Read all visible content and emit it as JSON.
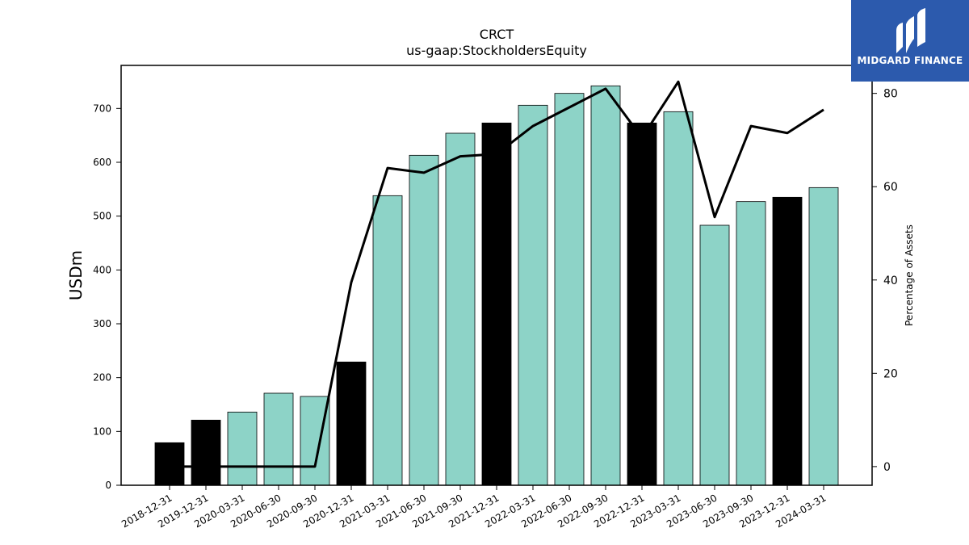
{
  "chart_data": {
    "type": "bar",
    "title": "CRCT",
    "subtitle": "us-gaap:StockholdersEquity",
    "ylabel": "USDm",
    "y2label": "Percentage of Assets",
    "ylim": [
      0,
      780
    ],
    "y2lim": [
      -4,
      86
    ],
    "yticks": [
      0,
      100,
      200,
      300,
      400,
      500,
      600,
      700
    ],
    "y2ticks": [
      0,
      20,
      40,
      60,
      80
    ],
    "categories": [
      "2018-12-31",
      "2019-12-31",
      "2020-03-31",
      "2020-06-30",
      "2020-09-30",
      "2020-12-31",
      "2021-03-31",
      "2021-06-30",
      "2021-09-30",
      "2021-12-31",
      "2022-03-31",
      "2022-06-30",
      "2022-09-30",
      "2022-12-31",
      "2023-03-31",
      "2023-06-30",
      "2023-09-30",
      "2023-12-31",
      "2024-03-31"
    ],
    "series": [
      {
        "type": "bar",
        "axis": "left",
        "values": [
          79,
          121,
          136,
          171,
          165,
          229,
          538,
          613,
          654,
          673,
          706,
          728,
          742,
          673,
          694,
          483,
          527,
          535,
          553
        ],
        "colors": [
          "#000000",
          "#000000",
          "#8dd3c7",
          "#8dd3c7",
          "#8dd3c7",
          "#000000",
          "#8dd3c7",
          "#8dd3c7",
          "#8dd3c7",
          "#000000",
          "#8dd3c7",
          "#8dd3c7",
          "#8dd3c7",
          "#000000",
          "#8dd3c7",
          "#8dd3c7",
          "#8dd3c7",
          "#000000",
          "#8dd3c7"
        ]
      },
      {
        "type": "line",
        "axis": "right",
        "values": [
          0,
          0,
          0,
          0,
          0,
          39.5,
          64,
          63,
          66.5,
          67,
          73,
          77,
          81,
          70.5,
          82.5,
          53.5,
          73,
          71.5,
          76.5
        ],
        "color": "#000000"
      }
    ],
    "grid": false,
    "legend": "none"
  },
  "logo": {
    "text": "MIDGARD FINANCE",
    "bg": "#2c5aad"
  }
}
